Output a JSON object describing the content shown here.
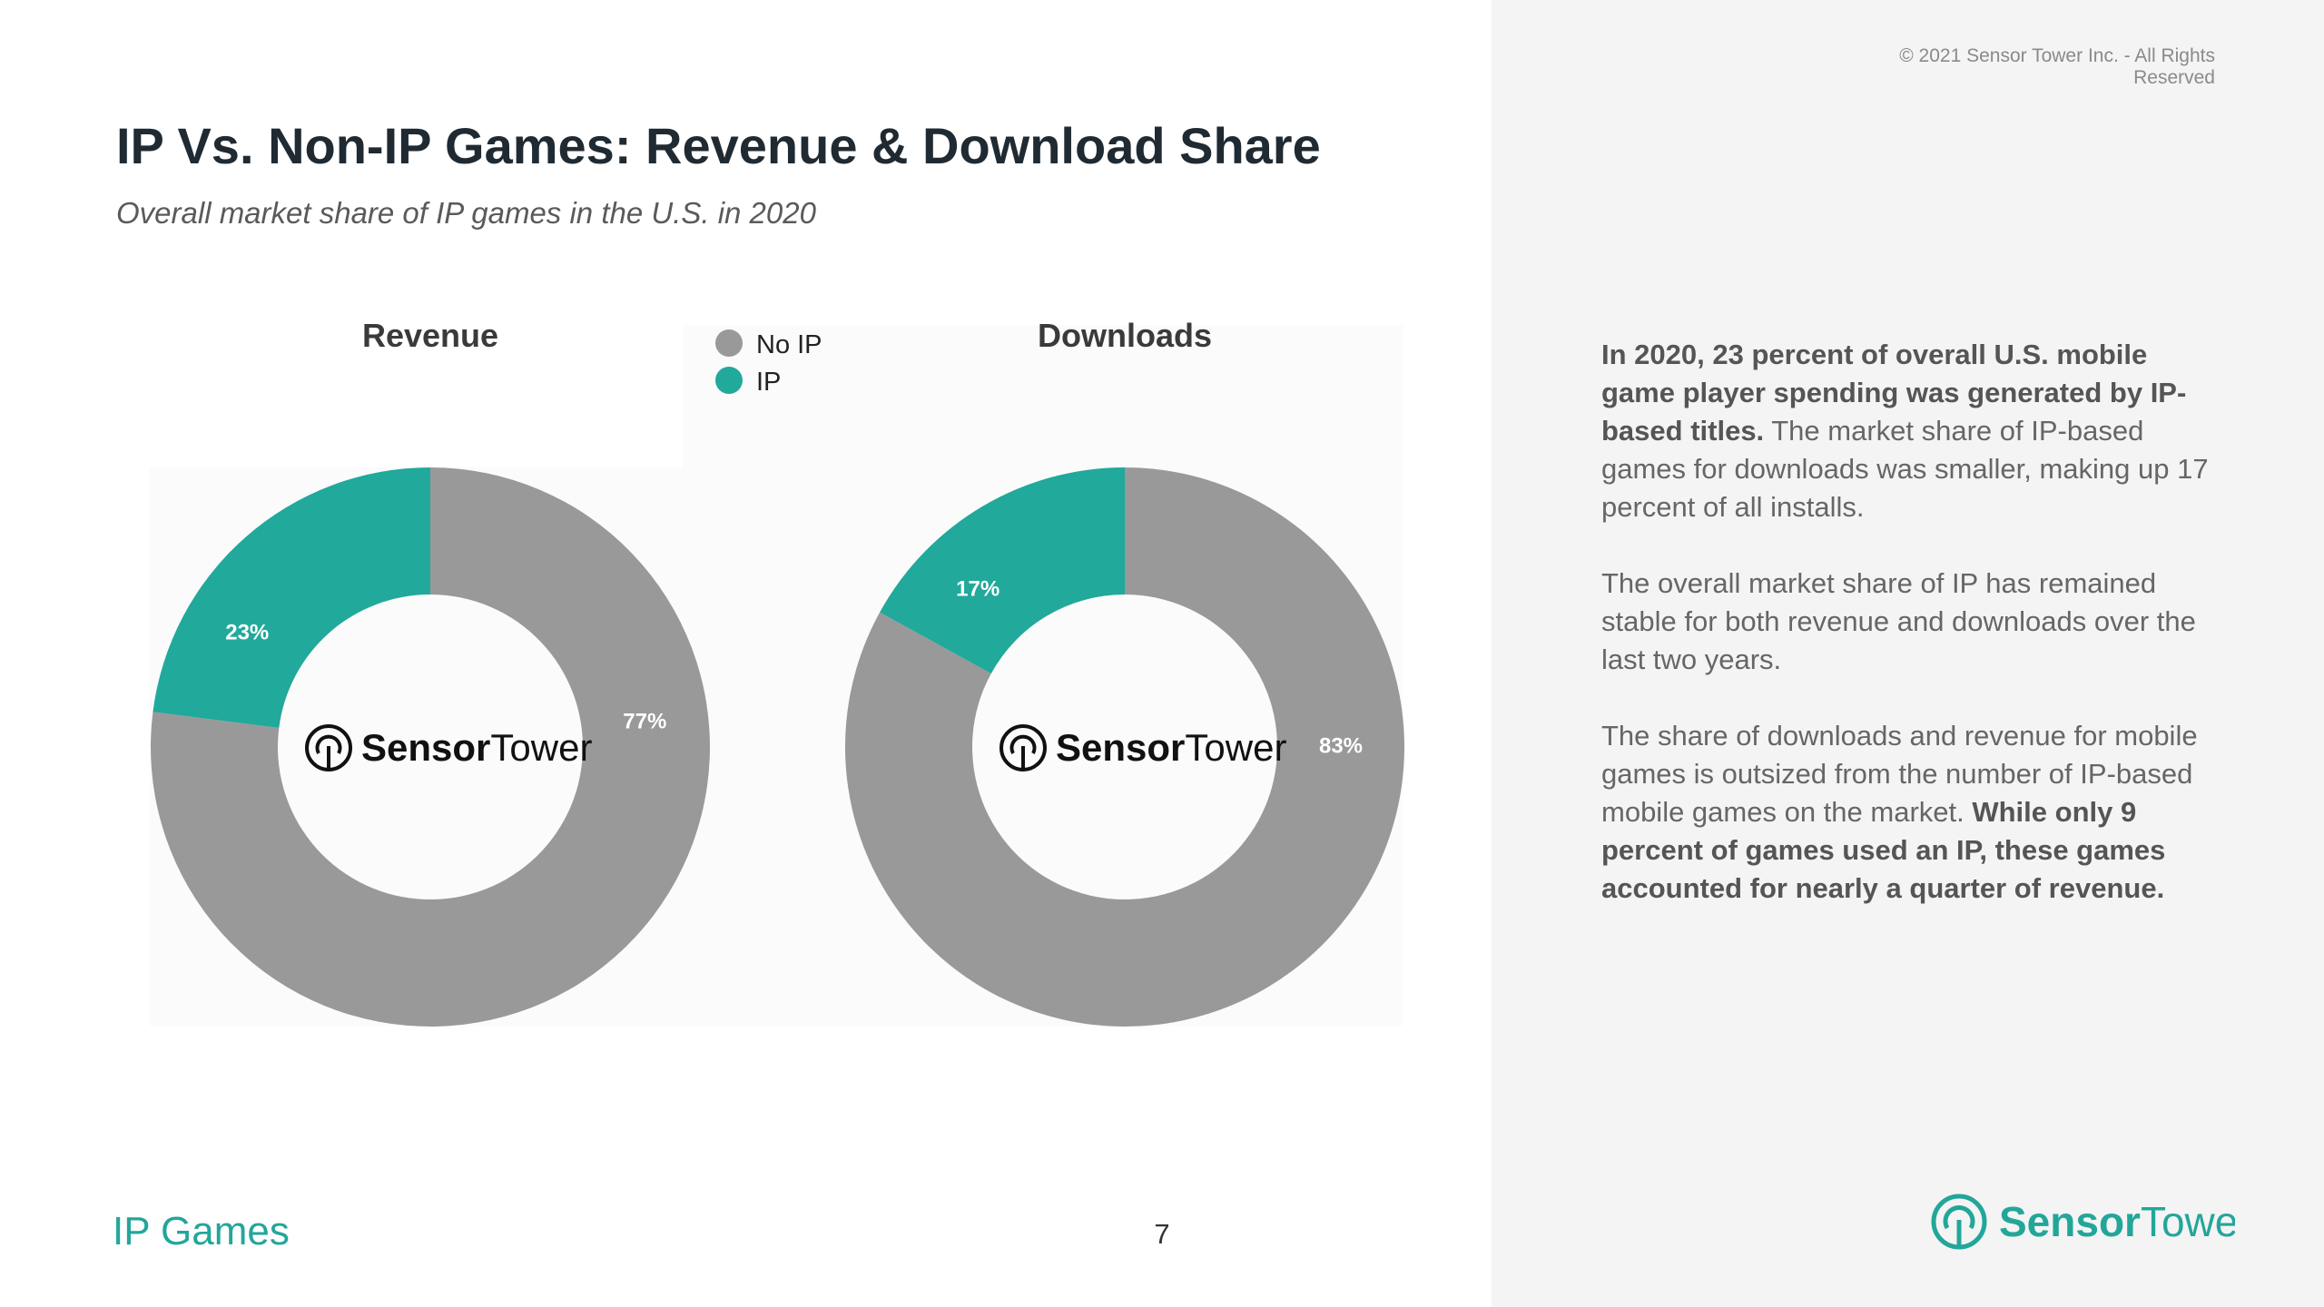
{
  "header": {
    "copyright": "© 2021 Sensor Tower Inc. - All Rights Reserved",
    "title": "IP Vs. Non-IP Games: Revenue & Download Share",
    "subtitle": "Overall market share of IP games in the U.S. in 2020"
  },
  "colors": {
    "no_ip": "#999999",
    "ip": "#21a99b",
    "brand": "#23a69a"
  },
  "chart_data": [
    {
      "type": "pie",
      "title": "Revenue",
      "donut": true,
      "legend_position": "top",
      "slices": [
        {
          "name": "No IP",
          "value": 77,
          "label": "77%"
        },
        {
          "name": "IP",
          "value": 23,
          "label": "23%"
        }
      ]
    },
    {
      "type": "pie",
      "title": "Downloads",
      "donut": true,
      "legend_position": "top",
      "slices": [
        {
          "name": "No IP",
          "value": 83,
          "label": "83%"
        },
        {
          "name": "IP",
          "value": 17,
          "label": "17%"
        }
      ]
    }
  ],
  "legend": [
    {
      "name": "No IP",
      "color_key": "no_ip"
    },
    {
      "name": "IP",
      "color_key": "ip"
    }
  ],
  "logo": {
    "name_bold": "Sensor",
    "name_light": "Tower",
    "icon": "sensor-tower-logo-icon"
  },
  "body": {
    "p1_bold": "In 2020, 23 percent of overall U.S. mobile game player spending was generated by IP-based titles.",
    "p1_rest": " The market share of IP-based games for downloads was smaller, making up 17 percent of all installs.",
    "p2": "The overall market share of IP has remained stable for both revenue and downloads over the last two years.",
    "p3_rest": "The share of downloads and revenue for mobile games is outsized from the number of IP-based mobile games on the market. ",
    "p3_bold": "While only 9 percent of games used an IP, these games accounted for nearly a quarter of revenue."
  },
  "footer": {
    "section": "IP Games",
    "page_number": "7"
  }
}
